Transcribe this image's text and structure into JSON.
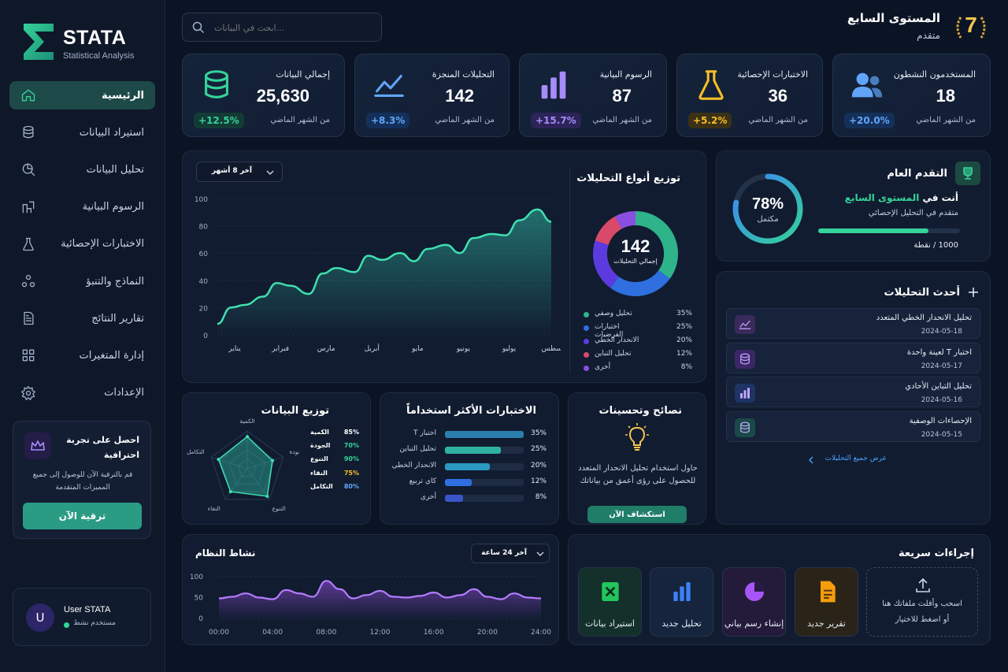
{
  "app": {
    "name": "STATA",
    "subtitle": "Statistical Analysis"
  },
  "search": {
    "placeholder": "ابحث في البيانات..."
  },
  "level": {
    "badge": "7",
    "title": "المستوى السابع",
    "subtitle": "متقدم"
  },
  "sidebar": {
    "items": [
      {
        "label": "الرئيسية",
        "icon": "home-icon",
        "active": true
      },
      {
        "label": "استيراد البيانات",
        "icon": "database-icon"
      },
      {
        "label": "تحليل البيانات",
        "icon": "analysis-icon"
      },
      {
        "label": "الرسوم البيانية",
        "icon": "chart-icon"
      },
      {
        "label": "الاختبارات الإحصائية",
        "icon": "flask-icon"
      },
      {
        "label": "النماذج والتنبؤ",
        "icon": "models-icon"
      },
      {
        "label": "تقارير النتائج",
        "icon": "report-icon"
      },
      {
        "label": "إدارة المتغيرات",
        "icon": "grid-icon"
      },
      {
        "label": "الإعدادات",
        "icon": "gear-icon"
      }
    ],
    "promo": {
      "title": "احصل على تجربة احترافية",
      "text": "قم بالترقية الآن للوصول إلى جميع المميزات المتقدمة",
      "button": "ترقية الآن"
    },
    "user": {
      "avatar": "U",
      "name": "User STATA",
      "status": "مستخدم نشط"
    }
  },
  "stats": [
    {
      "label": "إجمالي البيانات",
      "value": "25,630",
      "sub": "من الشهر الماضي",
      "change": "+12.5%",
      "color": "#34d399",
      "icon": "database-icon"
    },
    {
      "label": "التحليلات المنجزة",
      "value": "142",
      "sub": "من الشهر الماضي",
      "change": "+8.3%",
      "color": "#60a5fa",
      "icon": "line-chart-icon"
    },
    {
      "label": "الرسوم البيانية",
      "value": "87",
      "sub": "من الشهر الماضي",
      "change": "+15.7%",
      "color": "#a78bfa",
      "icon": "bar-chart-icon"
    },
    {
      "label": "الاختبارات الإحصائية",
      "value": "36",
      "sub": "من الشهر الماضي",
      "change": "+5.2%",
      "color": "#fbbf24",
      "icon": "flask-icon"
    },
    {
      "label": "المستخدمون النشطون",
      "value": "18",
      "sub": "من الشهر الماضي",
      "change": "+20.0%",
      "color": "#60a5fa",
      "icon": "users-icon"
    }
  ],
  "trend": {
    "range_label": "آخر 8 أشهر",
    "chart_data": {
      "type": "area",
      "categories": [
        "يناير",
        "فبراير",
        "مارس",
        "أبريل",
        "مايو",
        "يونيو",
        "يوليو",
        "أغسطس"
      ],
      "x": [
        0,
        0.3,
        0.6,
        1,
        1.3,
        1.6,
        2,
        2.3,
        2.6,
        3,
        3.3,
        3.6,
        4,
        4.3,
        4.6,
        5,
        5.3,
        5.6,
        6,
        6.3,
        6.6,
        7,
        7.3
      ],
      "values": [
        8,
        20,
        22,
        28,
        38,
        36,
        30,
        45,
        49,
        46,
        58,
        55,
        60,
        54,
        63,
        66,
        60,
        71,
        74,
        73,
        84,
        92,
        83
      ],
      "ylim": [
        0,
        100
      ],
      "yticks": [
        "100",
        "80",
        "60",
        "40",
        "20",
        "0"
      ],
      "grid": true
    }
  },
  "distribution": {
    "title": "توزيع أنواع التحليلات",
    "center_value": "142",
    "center_label": "إجمالي التحليلات",
    "chart_data": {
      "type": "pie",
      "categories": [
        "تحليل وصفي",
        "اختبارات الفرضيات",
        "الانحدار الخطي",
        "تحليل التباين",
        "أخرى"
      ],
      "values": [
        35,
        25,
        20,
        12,
        8
      ],
      "labels": [
        "35%",
        "25%",
        "20%",
        "12%",
        "8%"
      ],
      "colors": [
        "#2fb38a",
        "#2f6fe0",
        "#5b3be0",
        "#d94a6a",
        "#8a4fe0"
      ]
    }
  },
  "progress": {
    "title": "التقدم العام",
    "percent_text": "78%",
    "percent_value": 78,
    "percent_label": "مكتمل",
    "line1_a": "أنت في",
    "line1_b": "المستوى السابع",
    "line2": "متقدم في التحليل الإحصائي",
    "points": "1000 / نقطة",
    "bar_fraction": 0.78
  },
  "recent": {
    "title": "أحدث التحليلات",
    "items": [
      {
        "title": "تحليل الانحدار الخطي المتعدد",
        "date": "2024-05-18",
        "color": "#3a2a5c",
        "icon": "line-chart-icon"
      },
      {
        "title": "اختبار T لعينة واحدة",
        "date": "2024-05-17",
        "color": "#3b2768",
        "icon": "database-icon"
      },
      {
        "title": "تحليل التباين الأحادي",
        "date": "2024-05-16",
        "color": "#1e3366",
        "icon": "bar-chart-icon"
      },
      {
        "title": "الإحصاءات الوصفية",
        "date": "2024-05-15",
        "color": "#1a4a48",
        "icon": "database-icon"
      }
    ],
    "view_all": "عرض جميع التحليلات"
  },
  "radar": {
    "title": "توزيع البيانات",
    "axes": [
      "الكمية",
      "الجودة",
      "التنوع",
      "النقاء",
      "التكامل"
    ],
    "rows": [
      {
        "label": "الكمية",
        "value": "85%",
        "color": "#ffffff"
      },
      {
        "label": "الجودة",
        "value": "70%",
        "color": "#34d399"
      },
      {
        "label": "التنوع",
        "value": "90%",
        "color": "#34d399"
      },
      {
        "label": "النقاء",
        "value": "75%",
        "color": "#fbbf24"
      },
      {
        "label": "التكامل",
        "value": "80%",
        "color": "#60a5fa"
      }
    ],
    "chart_data": {
      "type": "radar",
      "categories": [
        "الكمية",
        "الجودة",
        "التنوع",
        "النقاء",
        "التكامل"
      ],
      "values": [
        85,
        70,
        90,
        75,
        80
      ]
    }
  },
  "tests": {
    "title": "الاختبارات الأكثر استخداماً",
    "chart_data": {
      "type": "bar",
      "categories": [
        "اختبار T",
        "تحليل التباين",
        "الانحدار الخطي",
        "كاي تربيع",
        "أخرى"
      ],
      "values": [
        35,
        25,
        20,
        12,
        8
      ],
      "labels": [
        "35%",
        "25%",
        "20%",
        "12%",
        "8%"
      ],
      "colors": [
        "#2b7fae",
        "#2fb3a0",
        "#2b9ac0",
        "#2f6fe0",
        "#3b55c8"
      ]
    }
  },
  "tips": {
    "title": "نصائح وتحسينات",
    "text": "حاول استخدام تحليل الانحدار المتعدد للحصول على رؤى أعمق من بياناتك",
    "button": "استكشاف الآن"
  },
  "activity": {
    "title": "نشاط النظام",
    "range_label": "آخر 24 ساعة",
    "chart_data": {
      "type": "line",
      "categories": [
        "00:00",
        "04:00",
        "08:00",
        "12:00",
        "16:00",
        "20:00",
        "24:00"
      ],
      "x": [
        0,
        1,
        2,
        3,
        4,
        5,
        6,
        7,
        8,
        9,
        10,
        11,
        12,
        13,
        14,
        15,
        16,
        17,
        18,
        19,
        20,
        21,
        22,
        23,
        24
      ],
      "values": [
        48,
        52,
        60,
        50,
        46,
        68,
        60,
        52,
        90,
        70,
        48,
        56,
        66,
        52,
        50,
        54,
        62,
        50,
        56,
        70,
        52,
        46,
        60,
        50,
        48
      ],
      "ylim": [
        0,
        100
      ],
      "yticks": [
        "100",
        "50",
        "0"
      ]
    }
  },
  "quick": {
    "title": "إجراءات سريعة",
    "upload_line1": "اسحب وأفلت ملفاتك هنا",
    "upload_line2": "أو اضغط للاختيار",
    "actions": [
      {
        "label": "تقرير جديد",
        "icon": "document-icon"
      },
      {
        "label": "إنشاء رسم بياني",
        "icon": "pie-chart-icon"
      },
      {
        "label": "تحليل جديد",
        "icon": "bar-chart-icon"
      },
      {
        "label": "استيراد بيانات",
        "icon": "excel-icon"
      }
    ]
  }
}
